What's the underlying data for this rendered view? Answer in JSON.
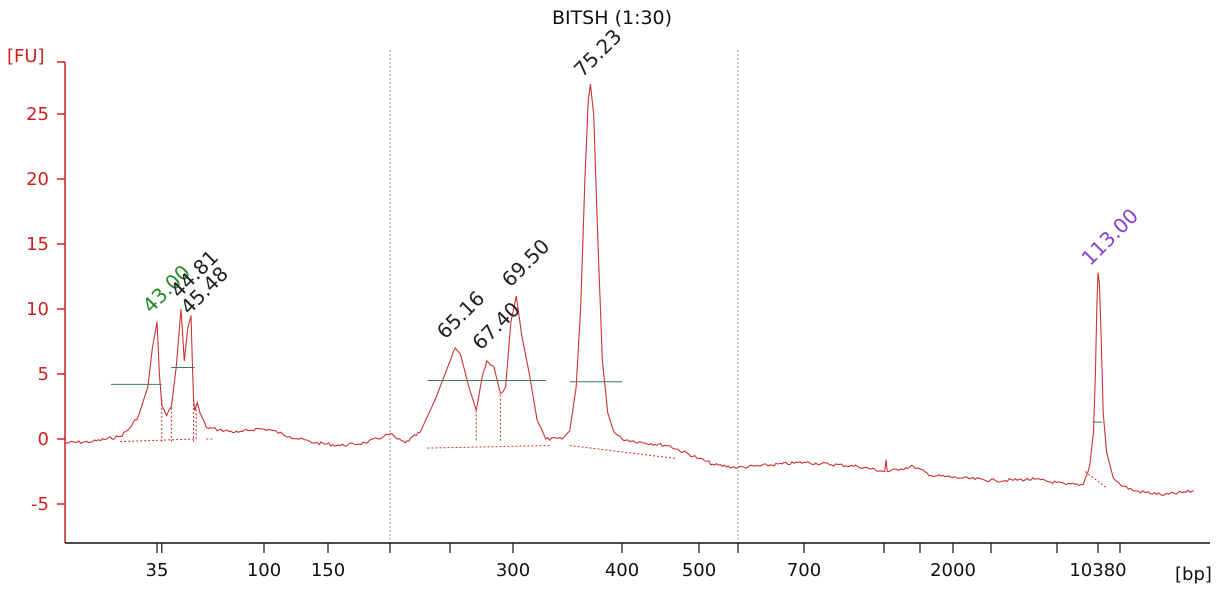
{
  "chart_data": {
    "type": "line",
    "title": "BITSH (1:30)",
    "ylabel": "[FU]",
    "xlabel": "[bp]",
    "ylim": [
      -8,
      29
    ],
    "y_ticks": [
      -5,
      0,
      5,
      10,
      15,
      20,
      25
    ],
    "x_tick_labels": [
      "35",
      "100",
      "150",
      "300",
      "400",
      "500",
      "700",
      "2000",
      "10380"
    ],
    "x_ticks": [
      {
        "label": "35",
        "x": 35
      },
      {
        "label": "100",
        "x": 100
      },
      {
        "label": "150",
        "x": 150
      },
      {
        "label": "300",
        "x": 300
      },
      {
        "label": "400",
        "x": 400
      },
      {
        "label": "500",
        "x": 500
      },
      {
        "label": "700",
        "x": 700
      },
      {
        "label": "2000",
        "x": 2000
      },
      {
        "label": "10380",
        "x": 10380
      }
    ],
    "extra_ticks": [
      36,
      200,
      240,
      600,
      850,
      1400,
      3000,
      6000,
      13000
    ],
    "markers": [
      200,
      600
    ],
    "series": [
      {
        "color": "#cc3333",
        "points": [
          [
            25,
            -0.3
          ],
          [
            28,
            -0.2
          ],
          [
            31,
            0.2
          ],
          [
            32,
            0.8
          ],
          [
            33,
            1.8
          ],
          [
            34,
            4.0
          ],
          [
            34.5,
            7.0
          ],
          [
            35,
            9.0
          ],
          [
            35.5,
            5.0
          ],
          [
            36,
            2.6
          ],
          [
            37,
            1.8
          ],
          [
            38,
            2.5
          ],
          [
            39,
            5.5
          ],
          [
            40,
            10.0
          ],
          [
            41,
            6.0
          ],
          [
            42,
            8.5
          ],
          [
            43,
            9.5
          ],
          [
            44,
            6.0
          ],
          [
            45,
            3.0
          ],
          [
            46,
            2.2
          ],
          [
            48,
            2.8
          ],
          [
            50,
            2.0
          ],
          [
            55,
            0.9
          ],
          [
            65,
            0.7
          ],
          [
            80,
            0.5
          ],
          [
            95,
            0.8
          ],
          [
            105,
            0.7
          ],
          [
            120,
            0.2
          ],
          [
            140,
            -0.3
          ],
          [
            160,
            -0.5
          ],
          [
            180,
            -0.3
          ],
          [
            195,
            0.2
          ],
          [
            200,
            0.4
          ],
          [
            205,
            0.0
          ],
          [
            210,
            -0.3
          ],
          [
            220,
            0.5
          ],
          [
            230,
            3.0
          ],
          [
            240,
            6.0
          ],
          [
            245,
            7.0
          ],
          [
            250,
            6.5
          ],
          [
            258,
            4.0
          ],
          [
            265,
            2.2
          ],
          [
            270,
            4.5
          ],
          [
            275,
            6.0
          ],
          [
            282,
            5.5
          ],
          [
            288,
            3.5
          ],
          [
            293,
            4.0
          ],
          [
            298,
            9.0
          ],
          [
            303,
            11.0
          ],
          [
            308,
            8.0
          ],
          [
            315,
            5.0
          ],
          [
            322,
            1.5
          ],
          [
            330,
            0.0
          ],
          [
            345,
            0.0
          ],
          [
            352,
            0.6
          ],
          [
            358,
            4.0
          ],
          [
            362,
            10.0
          ],
          [
            366,
            20.0
          ],
          [
            369,
            26.0
          ],
          [
            371,
            27.3
          ],
          [
            374,
            25.0
          ],
          [
            378,
            15.0
          ],
          [
            382,
            6.0
          ],
          [
            387,
            2.0
          ],
          [
            393,
            0.5
          ],
          [
            400,
            0.0
          ],
          [
            430,
            -0.3
          ],
          [
            460,
            -0.5
          ],
          [
            500,
            -1.5
          ],
          [
            540,
            -2.0
          ],
          [
            600,
            -2.2
          ],
          [
            700,
            -1.8
          ],
          [
            800,
            -2.1
          ],
          [
            860,
            -2.5
          ],
          [
            880,
            -1.6
          ],
          [
            900,
            -2.5
          ],
          [
            1100,
            -2.3
          ],
          [
            1300,
            -2.1
          ],
          [
            1600,
            -2.8
          ],
          [
            2200,
            -3.0
          ],
          [
            3200,
            -3.2
          ],
          [
            5000,
            -3.1
          ],
          [
            7000,
            -3.5
          ],
          [
            8800,
            -3.5
          ],
          [
            9500,
            -2.0
          ],
          [
            9900,
            0.5
          ],
          [
            10100,
            5.0
          ],
          [
            10250,
            10.0
          ],
          [
            10380,
            12.8
          ],
          [
            10550,
            12.0
          ],
          [
            10750,
            8.0
          ],
          [
            11000,
            2.0
          ],
          [
            11400,
            -1.0
          ],
          [
            12200,
            -3.0
          ],
          [
            13000,
            -3.5
          ],
          [
            14000,
            -4.0
          ],
          [
            16000,
            -4.3
          ],
          [
            18000,
            -4.0
          ]
        ]
      }
    ],
    "peaks": [
      {
        "x": 35,
        "y": 9.0,
        "label": "43.00",
        "color": "#2a8a2a"
      },
      {
        "x": 40,
        "y": 10.0,
        "label": "44.81",
        "color": "#222222"
      },
      {
        "x": 43,
        "y": 9.5,
        "label": "45.48",
        "color": "#222222"
      },
      {
        "x": 245,
        "y": 7.0,
        "label": "65.16",
        "color": "#222222"
      },
      {
        "x": 275,
        "y": 6.0,
        "label": "67.40",
        "color": "#222222"
      },
      {
        "x": 303,
        "y": 11.0,
        "label": "69.50",
        "color": "#222222"
      },
      {
        "x": 371,
        "y": 27.3,
        "label": "75.23",
        "color": "#222222"
      },
      {
        "x": 10380,
        "y": 12.8,
        "label": "113.00",
        "color": "#8a3fd1"
      }
    ],
    "colors": {
      "axis": "#cc2222",
      "trace": "#cc3333",
      "text": "#111111",
      "marker_line": "#9a9a9a",
      "level_line": "#3b7a5a"
    }
  }
}
